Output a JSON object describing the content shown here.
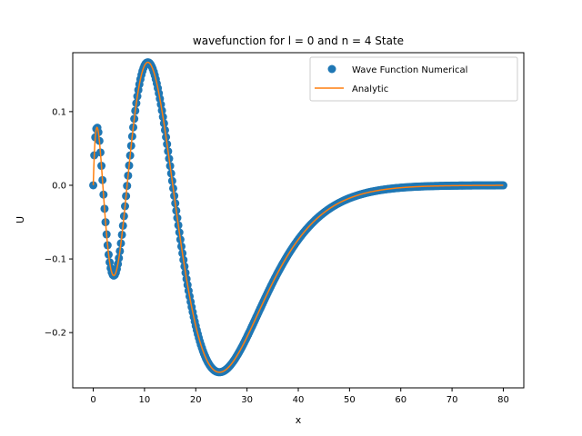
{
  "chart_data": {
    "type": "line",
    "title": "wavefunction for l = 0 and n = 4 State",
    "xlabel": "x",
    "ylabel": "U",
    "xlim": [
      -4,
      84
    ],
    "ylim": [
      -0.275,
      0.18
    ],
    "xticks": [
      0,
      10,
      20,
      30,
      40,
      50,
      60,
      70,
      80
    ],
    "xtick_labels": [
      "0",
      "10",
      "20",
      "30",
      "40",
      "50",
      "60",
      "70",
      "80"
    ],
    "yticks": [
      -0.2,
      -0.1,
      0.0,
      0.1
    ],
    "ytick_labels": [
      "−0.2",
      "−0.1",
      "0.0",
      "0.1"
    ],
    "grid": false,
    "legend_position": "top-right",
    "x_range": [
      0,
      80
    ],
    "series": [
      {
        "name": "Wave Function Numerical",
        "style": "markers",
        "color": "#1f77b4"
      },
      {
        "name": "Analytic",
        "style": "line",
        "color": "#ff7f0e"
      }
    ],
    "legend": {
      "numerical": "Wave Function Numerical",
      "analytic": "Analytic"
    }
  }
}
